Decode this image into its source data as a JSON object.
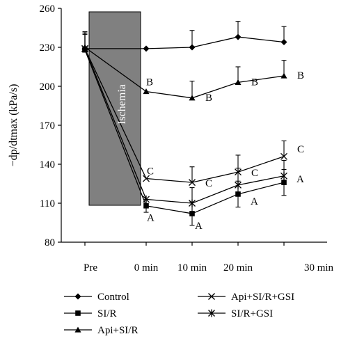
{
  "chart_data": {
    "type": "line",
    "ylabel": "−dp/dtmax (kPa/s)",
    "ylim": [
      80,
      260
    ],
    "yticks": [
      80,
      110,
      140,
      170,
      200,
      230,
      260
    ],
    "categories": [
      "Pre",
      "0 min",
      "10 min",
      "20 min",
      "30 min"
    ],
    "annotation": {
      "label": "Ischemia",
      "range": [
        "Pre",
        "0 min"
      ]
    },
    "series": [
      {
        "name": "Control",
        "marker": "diamond",
        "x": [
          "Pre",
          "0 min",
          "10 min",
          "20 min",
          "30 min"
        ],
        "values": [
          229,
          229,
          230,
          238,
          234
        ],
        "err": [
          12,
          0,
          13,
          12,
          12
        ],
        "group_labels": []
      },
      {
        "name": "SI/R",
        "marker": "square",
        "x": [
          "Pre",
          "0 min",
          "10 min",
          "20 min",
          "30 min"
        ],
        "values": [
          228,
          108,
          102,
          117,
          126
        ],
        "err": [
          12,
          5,
          9,
          10,
          10
        ],
        "group_labels": [
          "",
          "A",
          "A",
          "A",
          "A"
        ]
      },
      {
        "name": "Api+SI/R",
        "marker": "triangle",
        "x": [
          "Pre",
          "0 min",
          "10 min",
          "20 min",
          "30 min"
        ],
        "values": [
          230,
          196,
          191,
          203,
          208
        ],
        "err": [
          12,
          0,
          13,
          12,
          12
        ],
        "group_labels": [
          "",
          "B",
          "B",
          "B",
          "B"
        ]
      },
      {
        "name": "Api+SI/R+GSI",
        "marker": "x",
        "x": [
          "Pre",
          "0 min",
          "10 min",
          "20 min",
          "30 min"
        ],
        "values": [
          229,
          129,
          126,
          134,
          146
        ],
        "err": [
          12,
          0,
          12,
          13,
          12
        ],
        "group_labels": [
          "",
          "C",
          "C",
          "C",
          "C"
        ]
      },
      {
        "name": "SI/R+GSI",
        "marker": "star",
        "x": [
          "Pre",
          "0 min",
          "10 min",
          "20 min",
          "30 min"
        ],
        "values": [
          229,
          113,
          110,
          124,
          131
        ],
        "err": [
          12,
          0,
          12,
          13,
          12
        ],
        "group_labels": []
      }
    ],
    "legend_position": "bottom"
  }
}
